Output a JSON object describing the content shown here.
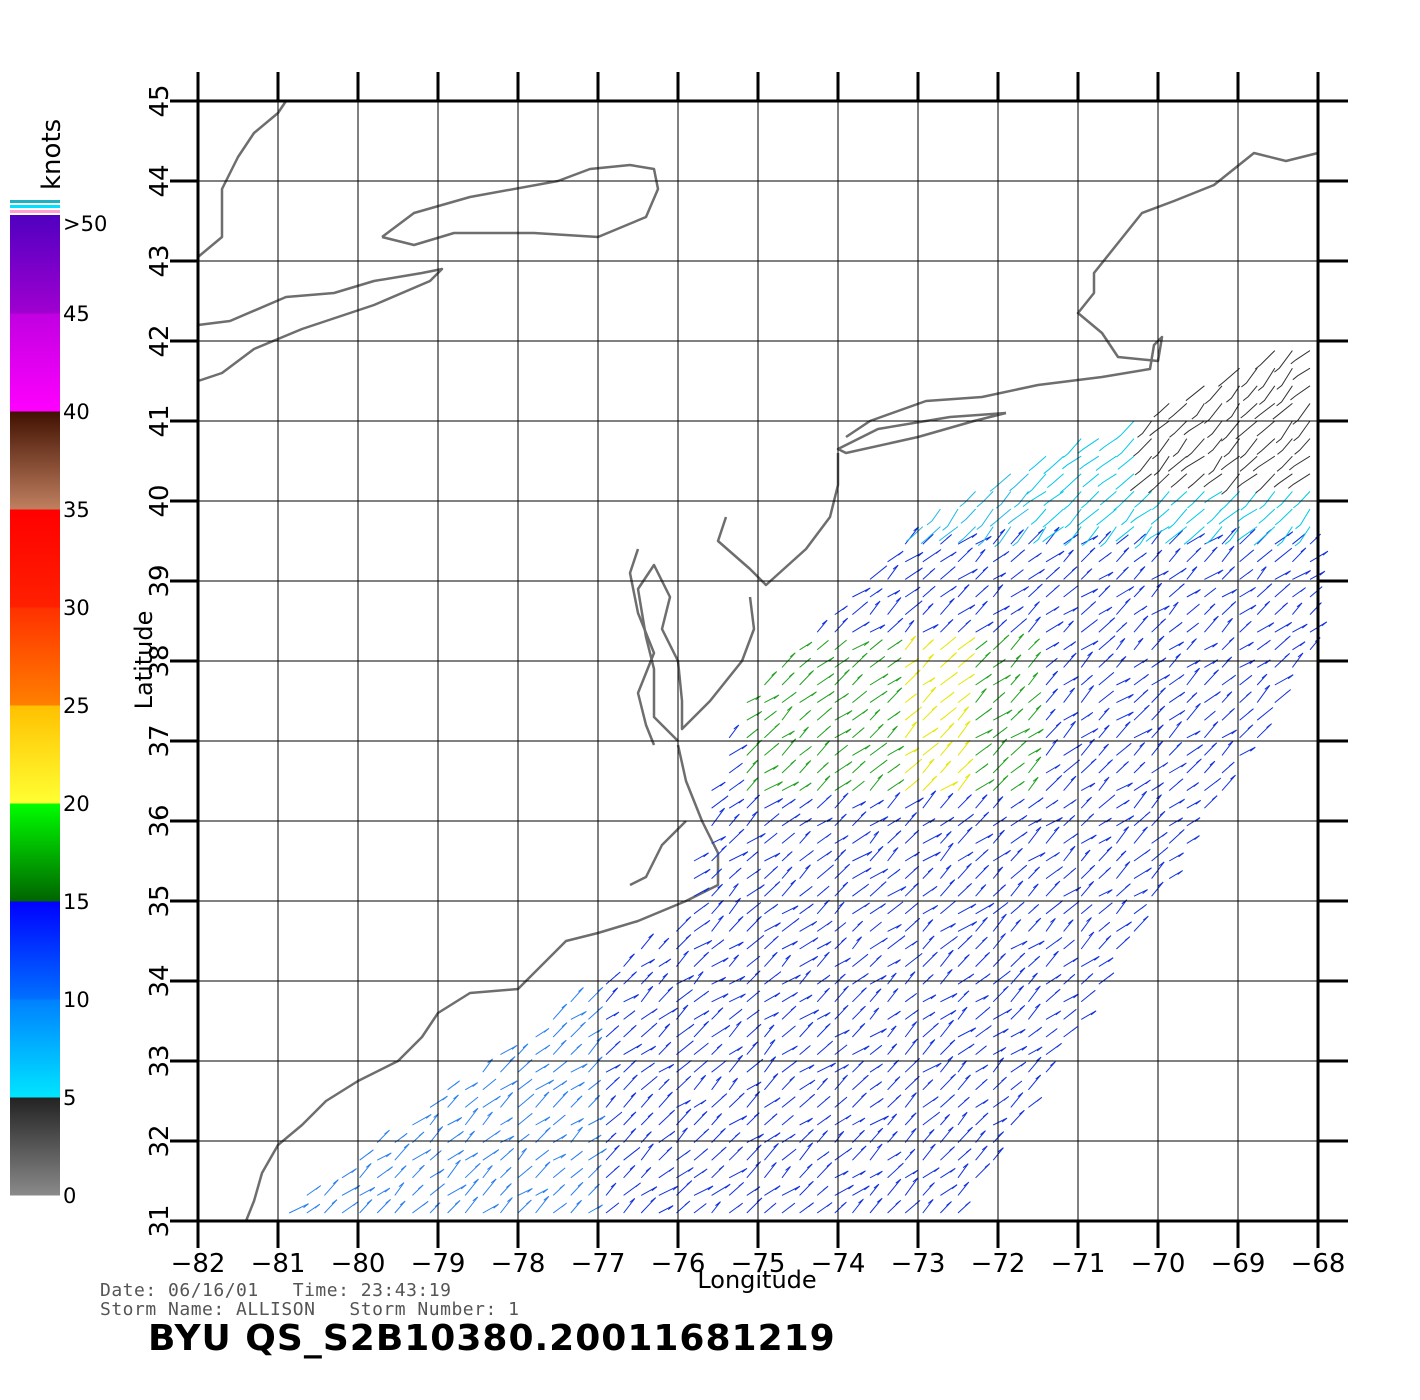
{
  "map": {
    "lon_ticks": [
      -82,
      -81,
      -80,
      -79,
      -78,
      -77,
      -76,
      -75,
      -74,
      -73,
      -72,
      -71,
      -70,
      -69,
      -68
    ],
    "lat_ticks": [
      31,
      32,
      33,
      34,
      35,
      36,
      37,
      38,
      39,
      40,
      41,
      42,
      43,
      44,
      45
    ],
    "lon_range": [
      -82,
      -68
    ],
    "lat_range": [
      31,
      45
    ],
    "xlabel": "Longitude",
    "ylabel": "Latitude",
    "grid": true
  },
  "legend": {
    "unit": "knots",
    "labels": [
      ">50",
      "45",
      "40",
      "35",
      "30",
      "25",
      "20",
      "15",
      "10",
      "5",
      "0"
    ],
    "bands": [
      {
        "from": 0,
        "to": 5,
        "colors": [
          "#8a8a8a",
          "#222222"
        ]
      },
      {
        "from": 5,
        "to": 10,
        "colors": [
          "#00e5ff",
          "#0080ff"
        ]
      },
      {
        "from": 10,
        "to": 15,
        "colors": [
          "#0070ff",
          "#0000ff"
        ]
      },
      {
        "from": 15,
        "to": 20,
        "colors": [
          "#006400",
          "#00ff00"
        ]
      },
      {
        "from": 20,
        "to": 25,
        "colors": [
          "#ffff33",
          "#ffc000"
        ]
      },
      {
        "from": 25,
        "to": 30,
        "colors": [
          "#ff8000",
          "#ff3000"
        ]
      },
      {
        "from": 30,
        "to": 35,
        "colors": [
          "#ff2000",
          "#ff0000"
        ]
      },
      {
        "from": 35,
        "to": 40,
        "colors": [
          "#c08060",
          "#401000"
        ]
      },
      {
        "from": 40,
        "to": 45,
        "colors": [
          "#ff00ff",
          "#c000e0"
        ]
      },
      {
        "from": 45,
        "to": 50,
        "colors": [
          "#a000d0",
          "#5000c0"
        ]
      }
    ]
  },
  "footer": {
    "line1": "Date: 06/16/01   Time: 23:43:19",
    "line2": "Storm Name: ALLISON   Storm Number: 1",
    "title": "BYU  QS_S2B10380.20011681219"
  }
}
